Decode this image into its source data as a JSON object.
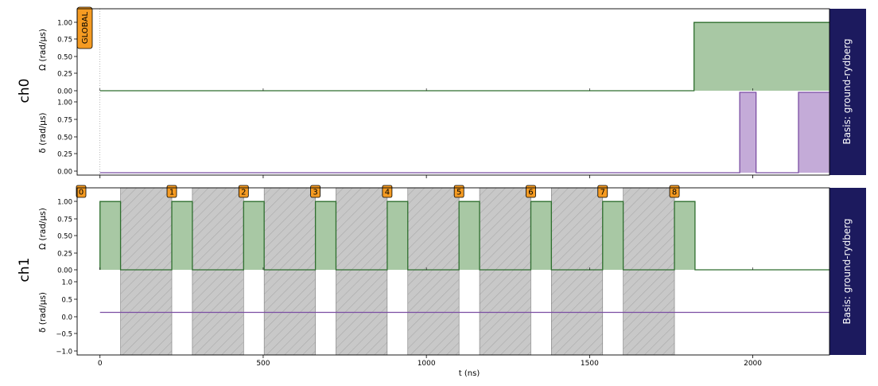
{
  "chart_data": {
    "type": "line",
    "xlabel": "t (ns)",
    "x_ticks": [
      "0",
      "500",
      "1000",
      "1500",
      "2000"
    ],
    "xlim": [
      -70,
      2235
    ],
    "channels": [
      {
        "name": "ch0",
        "basis_label": "Basis: ground-rydberg",
        "target_label": "GLOBAL",
        "omega": {
          "ylabel": "Ω (rad/µs)",
          "ylim": [
            0,
            1.2
          ],
          "ticks": [
            "0.00",
            "0.25",
            "0.50",
            "0.75",
            "1.00"
          ],
          "t": [
            0,
            1820,
            1820,
            2235
          ],
          "value": [
            0,
            0,
            1,
            1
          ]
        },
        "detuning": {
          "ylabel": "δ (rad/µs)",
          "ylim": [
            -0.03,
            1.02
          ],
          "ticks": [
            "0.00",
            "0.25",
            "0.50",
            "0.75",
            "1.00"
          ],
          "t": [
            0,
            1960,
            1960,
            2010,
            2010,
            2140,
            2140,
            2235
          ],
          "value": [
            0,
            0,
            1,
            1,
            0,
            0,
            1,
            1
          ]
        }
      },
      {
        "name": "ch1",
        "basis_label": "Basis: ground-rydberg",
        "target_labels": [
          "0",
          "1",
          "2",
          "3",
          "4",
          "5",
          "6",
          "7",
          "8"
        ],
        "target_times": [
          0,
          220,
          440,
          660,
          880,
          1100,
          1320,
          1540,
          1760
        ],
        "pulse_width": 63,
        "omega": {
          "ylabel": "Ω (rad/µs)",
          "ylim": [
            0,
            1.2
          ],
          "ticks": [
            "0.00",
            "0.25",
            "0.50",
            "0.75",
            "1.00"
          ],
          "pulse_value": 1.0
        },
        "detuning": {
          "ylabel": "δ (rad/µs)",
          "ylim": [
            -1.05,
            1.05
          ],
          "ticks": [
            "1.0",
            "0.5",
            "0.0",
            "−0.5",
            "−1.0"
          ],
          "value": 0
        },
        "hatched_intervals": [
          [
            63,
            220
          ],
          [
            283,
            440
          ],
          [
            503,
            660
          ],
          [
            723,
            880
          ],
          [
            943,
            1100
          ],
          [
            1163,
            1320
          ],
          [
            1383,
            1540
          ],
          [
            1603,
            1760
          ]
        ]
      }
    ]
  },
  "colors": {
    "omega_fill": "#a8c8a4",
    "omega_line": "#2e6e2e",
    "delta_fill": "#c4abd8",
    "delta_line": "#7b4ea3",
    "basis_box": "#1c1a5e",
    "target_box": "#f59b22",
    "hatch_fill": "#c8c8c8",
    "hatch_line": "#a9a9a9"
  }
}
